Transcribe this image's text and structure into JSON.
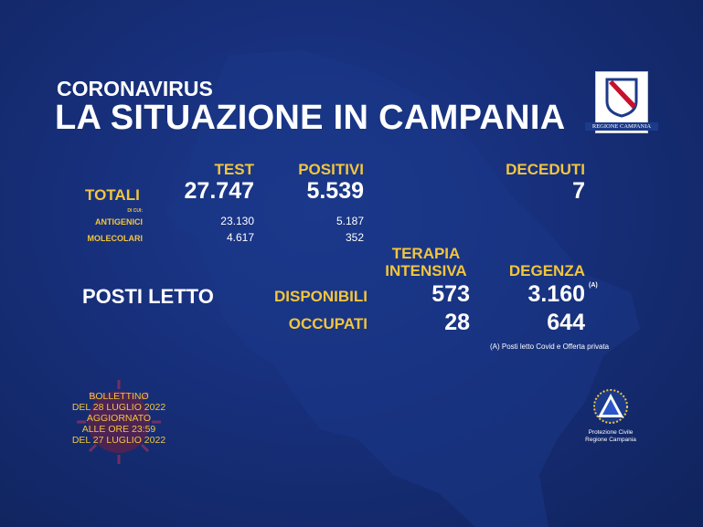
{
  "header": {
    "subtitle": "CORONAVIRUS",
    "title": "LA SITUAZIONE IN CAMPANIA"
  },
  "logo": {
    "caption": "REGIONE CAMPANIA"
  },
  "columns": {
    "test": "TEST",
    "positivi": "POSITIVI",
    "deceduti": "DECEDUTI"
  },
  "totali": {
    "label": "TOTALI",
    "test": "27.747",
    "positivi": "5.539",
    "deceduti": "7"
  },
  "di_cui": "DI CUI:",
  "antigenici": {
    "label": "ANTIGENICI",
    "test": "23.130",
    "positivi": "5.187"
  },
  "molecolari": {
    "label": "MOLECOLARI",
    "test": "4.617",
    "positivi": "352"
  },
  "beds": {
    "label": "POSTI LETTO",
    "terapia_line1": "TERAPIA",
    "terapia_line2": "INTENSIVA",
    "degenza": "DEGENZA",
    "note_marker": "(A)",
    "disponibili": {
      "label": "DISPONIBILI",
      "terapia": "573",
      "degenza": "3.160"
    },
    "occupati": {
      "label": "OCCUPATI",
      "terapia": "28",
      "degenza": "644"
    },
    "note": "(A) Posti letto Covid e Offerta privata"
  },
  "bulletin": {
    "line1": "BOLLETTINO",
    "line2": "DEL 28 LUGLIO 2022",
    "line3": "AGGIORNATO",
    "line4": "ALLE ORE 23:59",
    "line5": "DEL 27 LUGLIO 2022"
  },
  "protezione": {
    "line1": "Protezione Civile",
    "line2": "Regione Campania"
  },
  "colors": {
    "background": "#172f7a",
    "accent": "#f2c53d",
    "text": "#ffffff"
  }
}
